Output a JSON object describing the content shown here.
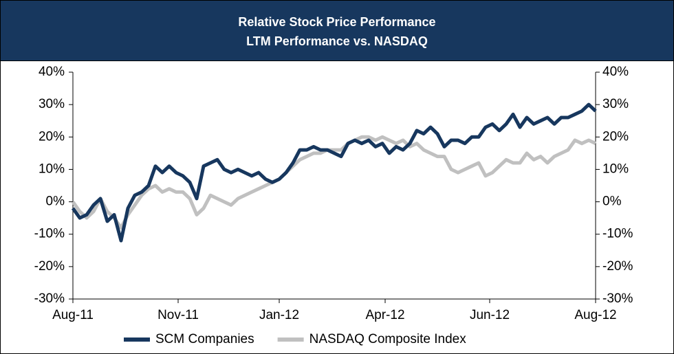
{
  "chart_data": {
    "type": "line",
    "title": "Relative Stock Price Performance",
    "subtitle": "LTM Performance vs. NASDAQ",
    "x": [
      0,
      1,
      2,
      3,
      4,
      5,
      6,
      7,
      8,
      9,
      10,
      11,
      12,
      13,
      14,
      15,
      16,
      17,
      18,
      19,
      20,
      21,
      22,
      23,
      24,
      25,
      26,
      27,
      28,
      29,
      30,
      31,
      32,
      33,
      34,
      35,
      36,
      37,
      38,
      39,
      40,
      41,
      42,
      43,
      44,
      45,
      46,
      47,
      48,
      49,
      50,
      51,
      52,
      53,
      54,
      55,
      56,
      57,
      58,
      59,
      60,
      61,
      62,
      63,
      64,
      65,
      66,
      67,
      68,
      69,
      70,
      71,
      72,
      73,
      74,
      75,
      76
    ],
    "xlim": [
      0,
      76
    ],
    "xticks": [
      {
        "value": 0,
        "label": "Aug-11"
      },
      {
        "value": 15.3,
        "label": "Nov-11"
      },
      {
        "value": 30,
        "label": "Jan-12"
      },
      {
        "value": 45.4,
        "label": "Apr-12"
      },
      {
        "value": 60.6,
        "label": "Jun-12"
      },
      {
        "value": 76,
        "label": "Aug-12"
      }
    ],
    "ylim": [
      -30,
      40
    ],
    "yticks": [
      {
        "value": -30,
        "label": "-30%"
      },
      {
        "value": -20,
        "label": "-20%"
      },
      {
        "value": -10,
        "label": "-10%"
      },
      {
        "value": 0,
        "label": "0%"
      },
      {
        "value": 10,
        "label": "10%"
      },
      {
        "value": 20,
        "label": "20%"
      },
      {
        "value": 30,
        "label": "30%"
      },
      {
        "value": 40,
        "label": "40%"
      }
    ],
    "y2lim": [
      -30,
      40
    ],
    "y2ticks": [
      {
        "value": -30,
        "label": "-30%"
      },
      {
        "value": -20,
        "label": "-20%"
      },
      {
        "value": -10,
        "label": "-10%"
      },
      {
        "value": 0,
        "label": "0%"
      },
      {
        "value": 10,
        "label": "10%"
      },
      {
        "value": 20,
        "label": "20%"
      },
      {
        "value": 30,
        "label": "30%"
      },
      {
        "value": 40,
        "label": "40%"
      }
    ],
    "legend": "bottom",
    "series": [
      {
        "name": "SCM Companies",
        "color": "#17375e",
        "values": [
          -2,
          -5,
          -4,
          -1,
          1,
          -6,
          -4,
          -12,
          -2,
          2,
          3,
          5,
          11,
          9,
          11,
          9,
          8,
          6,
          1,
          11,
          12,
          13,
          10,
          9,
          10,
          9,
          8,
          9,
          7,
          6,
          7,
          9,
          12,
          16,
          16,
          17,
          16,
          16,
          15,
          14,
          18,
          19,
          18,
          19,
          17,
          18,
          15,
          17,
          16,
          18,
          22,
          21,
          23,
          21,
          17,
          19,
          19,
          18,
          20,
          20,
          23,
          24,
          22,
          24,
          27,
          23,
          26,
          24,
          25,
          26,
          24,
          26,
          26,
          27,
          28,
          30,
          28
        ]
      },
      {
        "name": "NASDAQ Composite Index",
        "color": "#c0c0c0",
        "values": [
          0,
          -3,
          -5,
          -3,
          1,
          -3,
          -5,
          -8,
          -4,
          -1,
          2,
          4,
          5,
          3,
          4,
          3,
          3,
          1,
          -4,
          -2,
          2,
          1,
          0,
          -1,
          1,
          2,
          3,
          4,
          5,
          6,
          7,
          9,
          11,
          13,
          14,
          15,
          15,
          16,
          16,
          16,
          18,
          19,
          20,
          20,
          19,
          20,
          19,
          18,
          19,
          17,
          18,
          16,
          15,
          14,
          14,
          10,
          9,
          10,
          11,
          12,
          8,
          9,
          11,
          13,
          12,
          12,
          15,
          13,
          14,
          12,
          14,
          15,
          16,
          19,
          18,
          19,
          18
        ]
      }
    ]
  }
}
